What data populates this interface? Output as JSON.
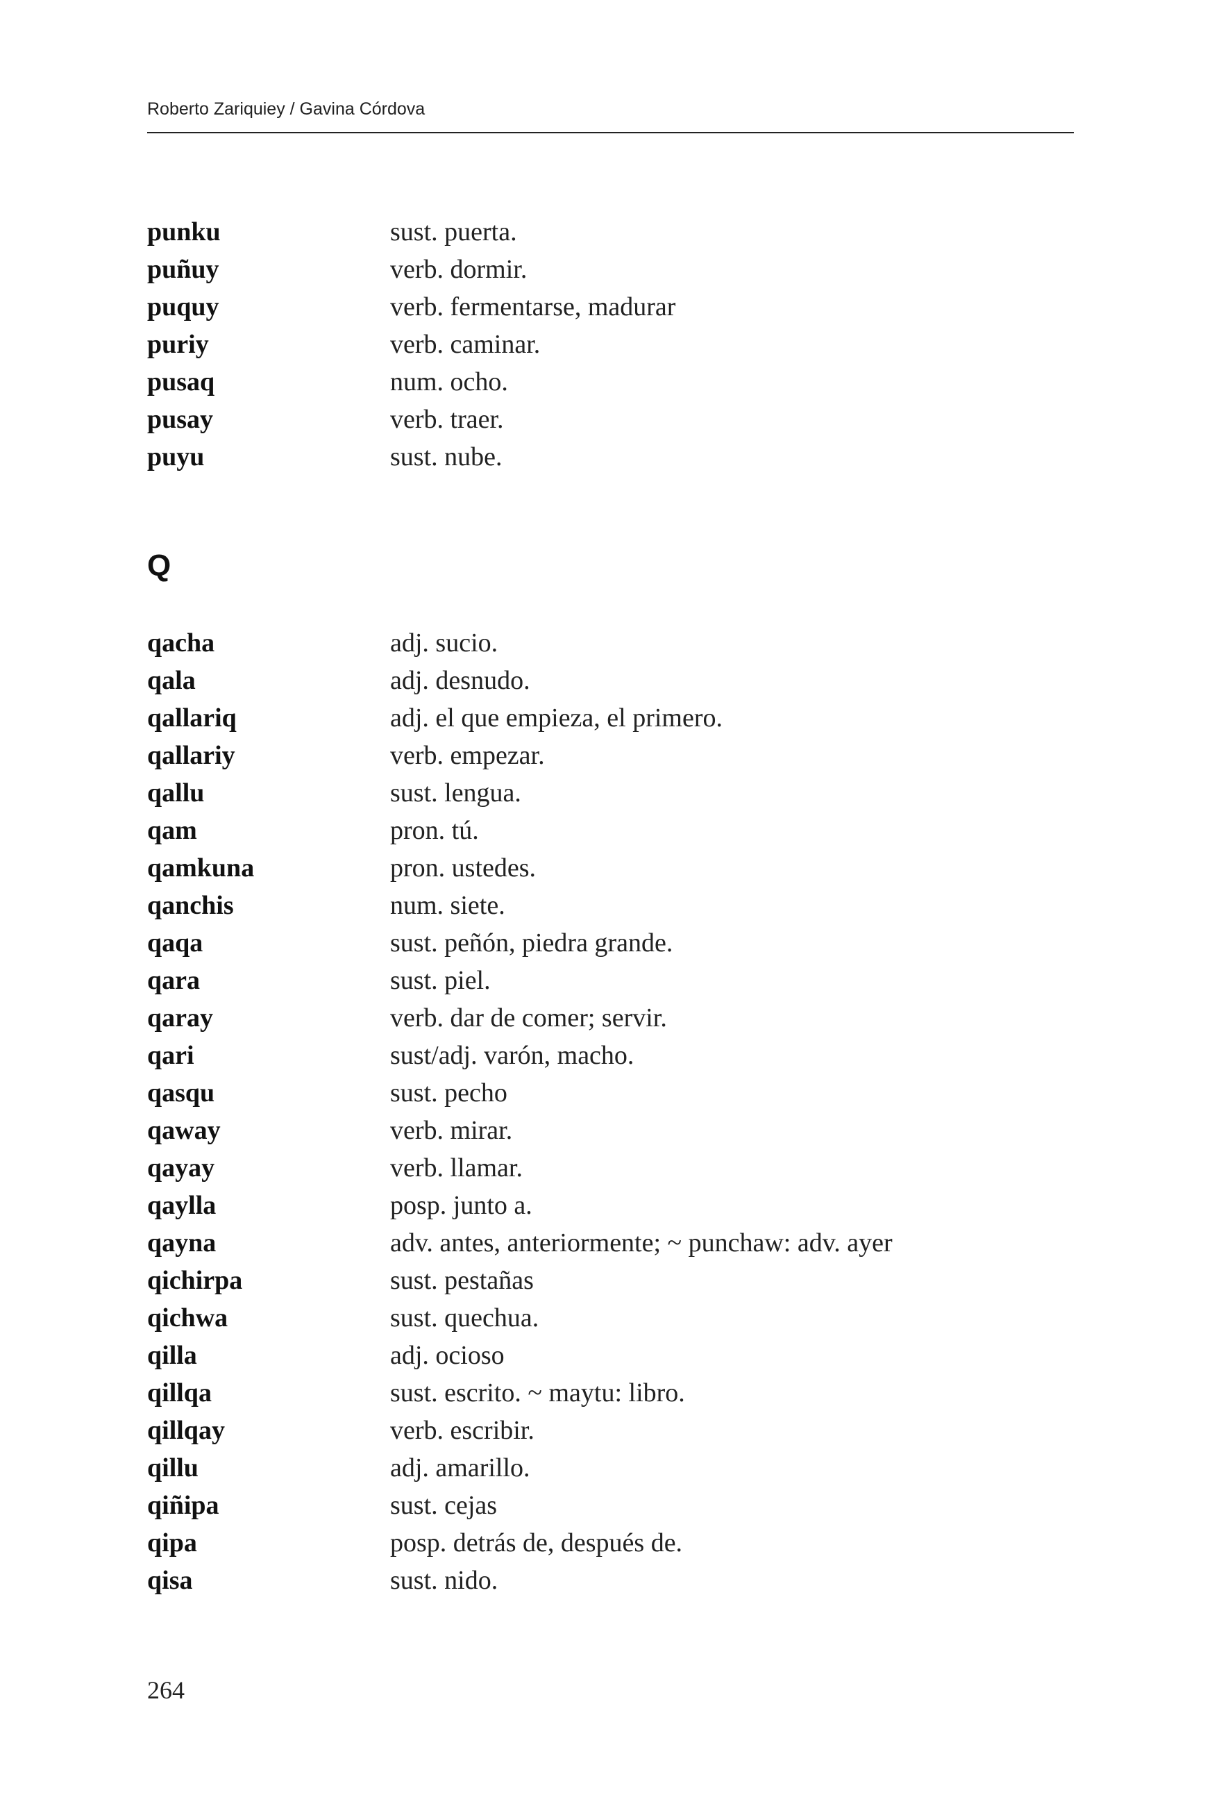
{
  "header": {
    "running_title": "Roberto Zariquiey / Gavina Córdova"
  },
  "section_p": {
    "entries": [
      {
        "word": "punku",
        "definition": "sust. puerta."
      },
      {
        "word": "puñuy",
        "definition": "verb. dormir."
      },
      {
        "word": "puquy",
        "definition": "verb. fermentarse, madurar"
      },
      {
        "word": "puriy",
        "definition": "verb. caminar."
      },
      {
        "word": "pusaq",
        "definition": "num. ocho."
      },
      {
        "word": "pusay",
        "definition": "verb. traer."
      },
      {
        "word": "puyu",
        "definition": "sust. nube."
      }
    ]
  },
  "section_q": {
    "letter": "Q",
    "entries": [
      {
        "word": "qacha",
        "definition": "adj. sucio."
      },
      {
        "word": "qala",
        "definition": "adj. desnudo."
      },
      {
        "word": "qallariq",
        "definition": "adj. el que empieza, el primero."
      },
      {
        "word": "qallariy",
        "definition": "verb. empezar."
      },
      {
        "word": "qallu",
        "definition": "sust. lengua."
      },
      {
        "word": "qam",
        "definition": "pron. tú."
      },
      {
        "word": "qamkuna",
        "definition": "pron. ustedes."
      },
      {
        "word": "qanchis",
        "definition": "num. siete."
      },
      {
        "word": "qaqa",
        "definition": "sust. peñón, piedra grande."
      },
      {
        "word": "qara",
        "definition": "sust. piel."
      },
      {
        "word": "qaray",
        "definition": "verb. dar de comer; servir."
      },
      {
        "word": "qari",
        "definition": "sust/adj. varón, macho."
      },
      {
        "word": "qasqu",
        "definition": "sust. pecho"
      },
      {
        "word": "qaway",
        "definition": "verb. mirar."
      },
      {
        "word": "qayay",
        "definition": "verb. llamar."
      },
      {
        "word": "qaylla",
        "definition": "posp. junto a."
      },
      {
        "word": "qayna",
        "definition": "adv. antes, anteriormente; ~ punchaw: adv. ayer"
      },
      {
        "word": "qichirpa",
        "definition": "sust. pestañas"
      },
      {
        "word": "qichwa",
        "definition": "sust. quechua."
      },
      {
        "word": "qilla",
        "definition": "adj. ocioso"
      },
      {
        "word": "qillqa",
        "definition": "sust. escrito. ~ maytu: libro."
      },
      {
        "word": "qillqay",
        "definition": "verb. escribir."
      },
      {
        "word": "qillu",
        "definition": "adj. amarillo."
      },
      {
        "word": "qiñipa",
        "definition": "sust. cejas"
      },
      {
        "word": "qipa",
        "definition": "posp. detrás de, después de."
      },
      {
        "word": "qisa",
        "definition": "sust. nido."
      }
    ]
  },
  "footer": {
    "page_number": "264"
  }
}
